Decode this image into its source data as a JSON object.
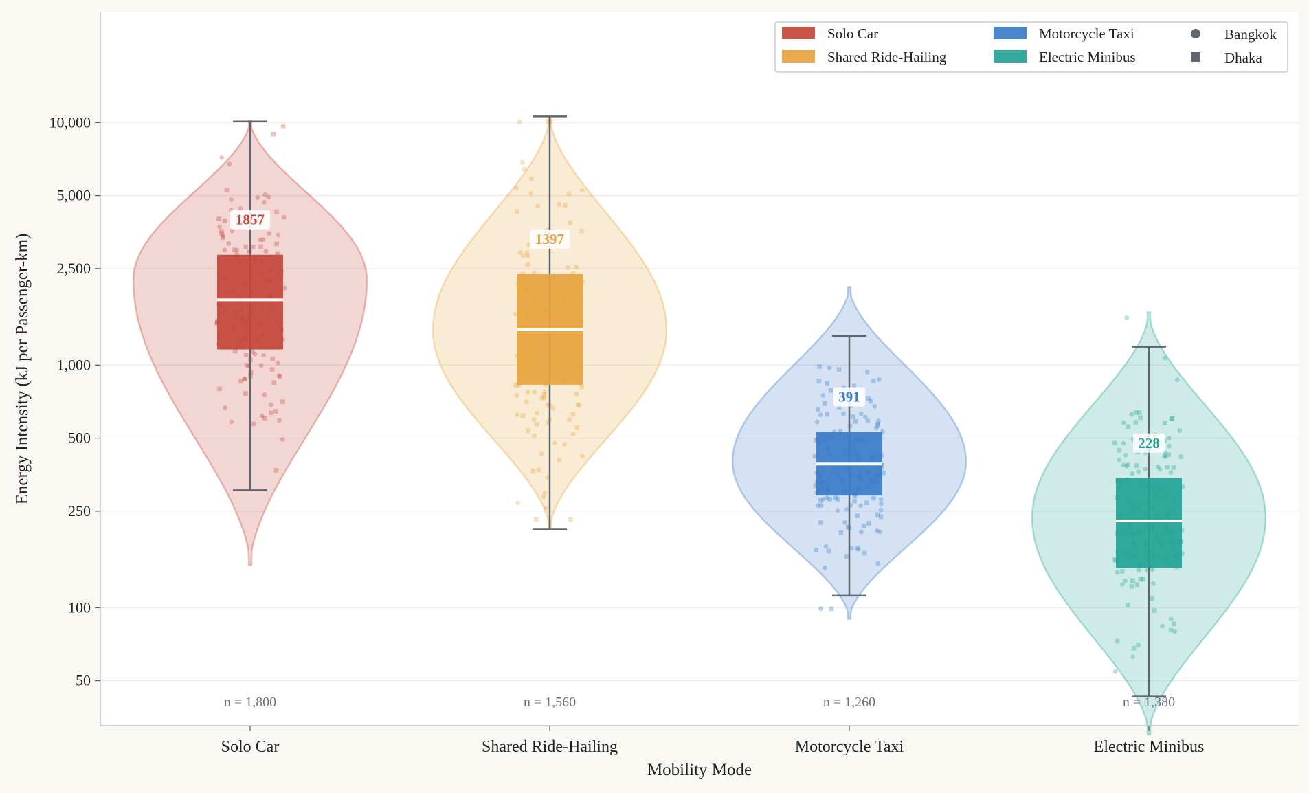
{
  "chart_data": {
    "type": "violin",
    "title": "",
    "xlabel": "Mobility Mode",
    "ylabel": "Energy Intensity (kJ per Passenger-km)",
    "yscale": "log",
    "ylim": [
      25,
      12500
    ],
    "yticks": [
      50,
      100,
      250,
      500,
      1000,
      2500,
      5000,
      10000
    ],
    "ytick_labels": [
      "50",
      "100",
      "250",
      "500",
      "1,000",
      "2,500",
      "5,000",
      "10,000"
    ],
    "grid": "horizontal",
    "legend_position": "top-right",
    "categories": [
      "Solo Car",
      "Shared Ride-Hailing",
      "Motorcycle Taxi",
      "Electric Minibus"
    ],
    "series": [
      {
        "name": "Solo Car",
        "color": "#c4463a",
        "median": 1857,
        "q1": 1160,
        "q3": 2850,
        "whisker_low": 305,
        "whisker_high": 10100,
        "violin_min": 150,
        "violin_max": 10200,
        "violin_peak": 2250,
        "n_label": "n = 1,800",
        "median_label": "1857"
      },
      {
        "name": "Shared Ride-Hailing",
        "color": "#e8a33d",
        "median": 1397,
        "q1": 830,
        "q3": 2370,
        "whisker_low": 210,
        "whisker_high": 10600,
        "violin_min": 210,
        "violin_max": 10600,
        "violin_peak": 1400,
        "n_label": "n = 1,560",
        "median_label": "1397"
      },
      {
        "name": "Motorcycle Taxi",
        "color": "#3a7cc8",
        "median": 391,
        "q1": 290,
        "q3": 530,
        "whisker_low": 112,
        "whisker_high": 1320,
        "violin_min": 90,
        "violin_max": 2100,
        "violin_peak": 400,
        "n_label": "n = 1,260",
        "median_label": "391"
      },
      {
        "name": "Electric Minibus",
        "color": "#22a394",
        "median": 228,
        "q1": 146,
        "q3": 342,
        "whisker_low": 43,
        "whisker_high": 1190,
        "violin_min": 30,
        "violin_max": 1650,
        "violin_peak": 235,
        "n_label": "n = 1,380",
        "median_label": "228"
      }
    ],
    "legend": {
      "modes": [
        "Solo Car",
        "Shared Ride-Hailing",
        "Motorcycle Taxi",
        "Electric Minibus"
      ],
      "cities": [
        {
          "name": "Bangkok",
          "marker": "circle"
        },
        {
          "name": "Dhaka",
          "marker": "square"
        }
      ]
    }
  },
  "colors": {
    "axis": "#b8c4d4",
    "grid": "#e6e6e6",
    "whisker": "#5f6670",
    "median_line": "#ffffff"
  }
}
